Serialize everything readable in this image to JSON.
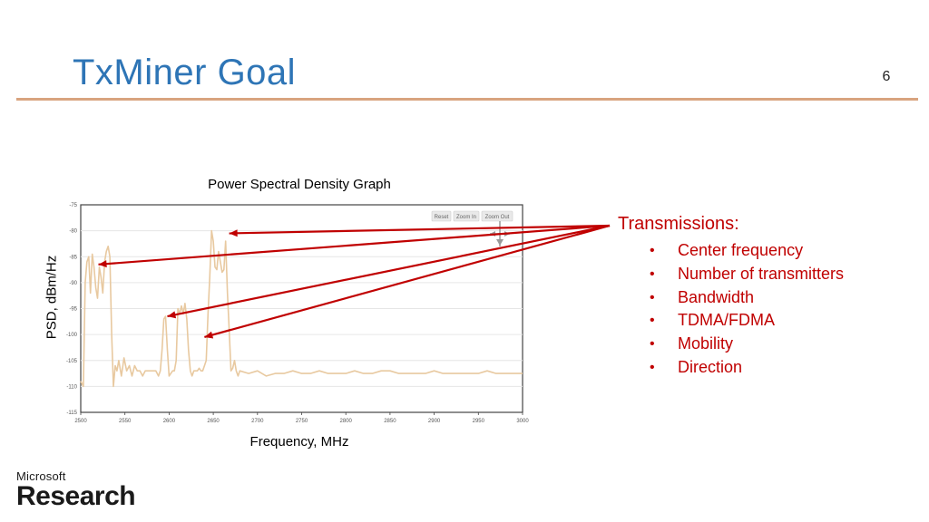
{
  "slide": {
    "title": "TxMiner Goal",
    "number": "6"
  },
  "chart_data": {
    "type": "line",
    "title": "Power Spectral Density Graph",
    "xlabel": "Frequency, MHz",
    "ylabel": "PSD, dBm/Hz",
    "xlim": [
      2500,
      3000
    ],
    "ylim": [
      -115,
      -75
    ],
    "x_ticks": [
      "2500",
      "2550",
      "2600",
      "2650",
      "2700",
      "2750",
      "2800",
      "2850",
      "2900",
      "2950",
      "3000"
    ],
    "y_ticks": [
      "-75",
      "-80",
      "-85",
      "-90",
      "-95",
      "-100",
      "-105",
      "-110",
      "-115"
    ],
    "grid": true,
    "toolbar": [
      "Reset",
      "Zoom In",
      "Zoom Out"
    ],
    "series_color": "#e8c9a0",
    "series": [
      {
        "x": [
          2500,
          2503,
          2505,
          2507,
          2509,
          2511,
          2513,
          2515,
          2517,
          2519,
          2521,
          2523,
          2525,
          2527,
          2529,
          2531,
          2533,
          2535,
          2537,
          2539,
          2541,
          2543,
          2546,
          2549,
          2552,
          2555,
          2558,
          2561,
          2564,
          2567,
          2570,
          2573,
          2576,
          2579,
          2582,
          2585,
          2588,
          2590,
          2592,
          2594,
          2596,
          2598,
          2600,
          2602,
          2604,
          2606,
          2608,
          2610,
          2612,
          2614,
          2616,
          2618,
          2620,
          2622,
          2624,
          2626,
          2628,
          2630,
          2632,
          2634,
          2636,
          2638,
          2640,
          2642,
          2644,
          2646,
          2648,
          2650,
          2652,
          2654,
          2656,
          2658,
          2660,
          2662,
          2664,
          2666,
          2668,
          2670,
          2672,
          2674,
          2676,
          2678,
          2680,
          2690,
          2700,
          2710,
          2720,
          2730,
          2740,
          2750,
          2760,
          2770,
          2780,
          2790,
          2800,
          2810,
          2820,
          2830,
          2840,
          2850,
          2860,
          2870,
          2880,
          2890,
          2900,
          2910,
          2920,
          2930,
          2940,
          2950,
          2960,
          2970,
          2980,
          2990,
          3000
        ],
        "y": [
          -109,
          -110,
          -90,
          -86,
          -85,
          -92,
          -84.5,
          -87,
          -91,
          -93,
          -87,
          -89,
          -92,
          -86,
          -84,
          -83,
          -85,
          -100,
          -110,
          -106,
          -107,
          -105,
          -108,
          -104.5,
          -107,
          -106,
          -108,
          -106,
          -107,
          -107,
          -108,
          -107,
          -107,
          -107,
          -107,
          -107,
          -108,
          -107,
          -103,
          -97,
          -96.5,
          -103,
          -108,
          -107.5,
          -107,
          -107,
          -105,
          -95,
          -96,
          -94.5,
          -96,
          -94,
          -97,
          -103,
          -107,
          -108,
          -107,
          -107,
          -107,
          -106.5,
          -107,
          -107,
          -106,
          -105,
          -96,
          -89,
          -80,
          -82,
          -87,
          -87.5,
          -84,
          -86,
          -88,
          -87.5,
          -82,
          -92,
          -99,
          -107,
          -106.5,
          -105,
          -107,
          -108,
          -107,
          -107.5,
          -107,
          -108,
          -107.5,
          -107.5,
          -107,
          -107.5,
          -107.5,
          -107,
          -107.5,
          -107.5,
          -107.5,
          -107,
          -107.5,
          -107.5,
          -107,
          -107,
          -107.5,
          -107.5,
          -107.5,
          -107.5,
          -107,
          -107.5,
          -107.5,
          -107.5,
          -107.5,
          -107.5,
          -107,
          -107.5,
          -107.5,
          -107.5,
          -107.5
        ]
      }
    ]
  },
  "callout": {
    "header": "Transmissions:",
    "items": [
      "Center frequency",
      "Number of transmitters",
      "Bandwidth",
      "TDMA/FDMA",
      "Mobility",
      "Direction"
    ],
    "arrow_color": "#c00000",
    "arrow_targets": [
      {
        "x": 2520,
        "y": -86.5
      },
      {
        "x": 2668,
        "y": -80.5
      },
      {
        "x": 2598,
        "y": -96.5
      },
      {
        "x": 2640,
        "y": -100.5
      }
    ]
  },
  "logo": {
    "top": "Microsoft",
    "bottom": "Research"
  }
}
